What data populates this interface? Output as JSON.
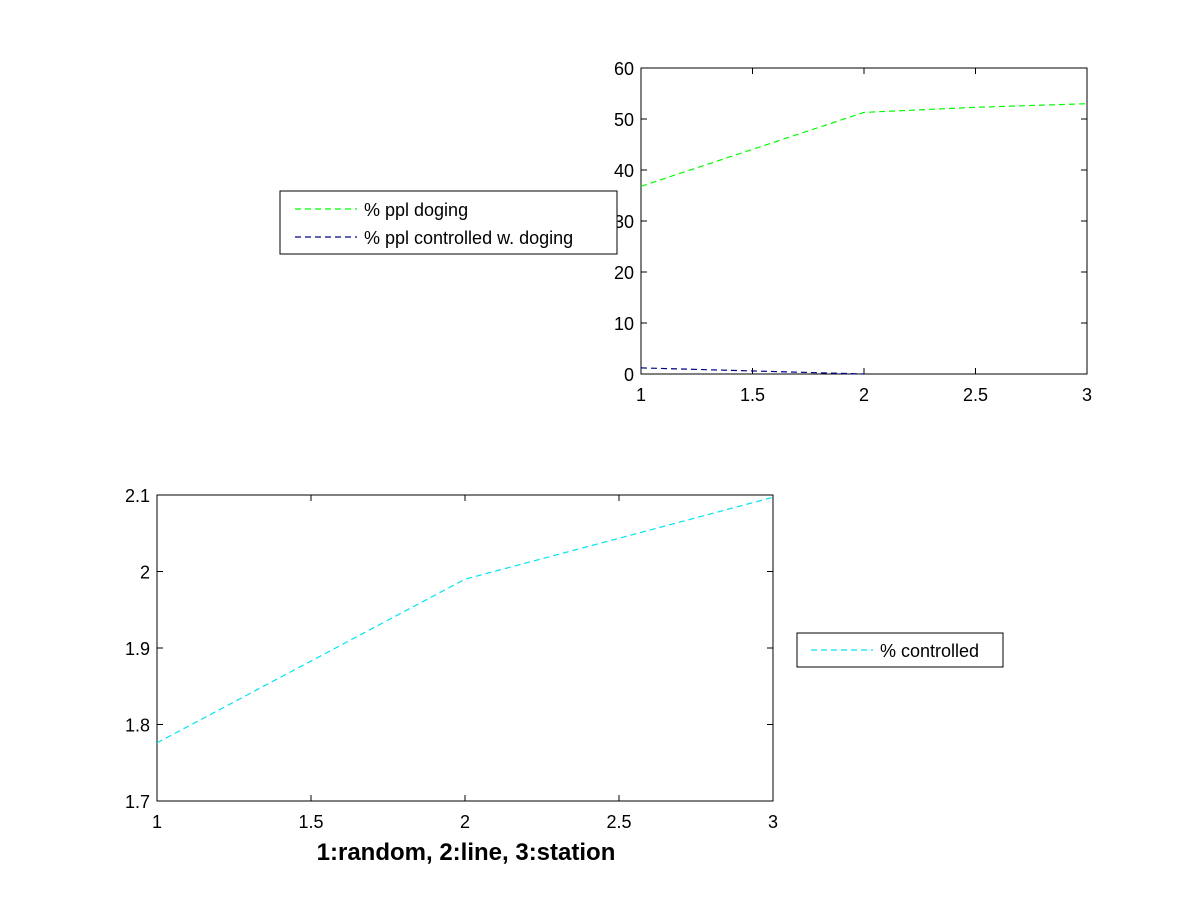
{
  "chart_data": [
    {
      "type": "line",
      "x": [
        1,
        2,
        3
      ],
      "xlim": [
        1,
        3
      ],
      "ylim": [
        0,
        60
      ],
      "xticks": [
        1,
        1.5,
        2,
        2.5,
        3
      ],
      "xtick_labels": [
        "1",
        "1.5",
        "2",
        "2.5",
        "3"
      ],
      "yticks": [
        0,
        10,
        20,
        30,
        40,
        50,
        60
      ],
      "ytick_labels": [
        "0",
        "10",
        "20",
        "30",
        "40",
        "50",
        "60"
      ],
      "grid": false,
      "legend_placement": "left-outside",
      "xlabel": "",
      "ylabel": "",
      "title": "",
      "series": [
        {
          "name": "% ppl doging",
          "x": [
            1,
            2,
            2.5,
            3
          ],
          "values": [
            36.8,
            51.3,
            52.3,
            53.0
          ],
          "color": "#00ff00",
          "style": "dashed"
        },
        {
          "name": "% ppl controlled w. doging",
          "x": [
            1,
            2
          ],
          "values": [
            1.2,
            0.0
          ],
          "color": "#00008b",
          "style": "dashed"
        }
      ]
    },
    {
      "type": "line",
      "x": [
        1,
        2,
        3
      ],
      "xlim": [
        1,
        3
      ],
      "ylim": [
        1.7,
        2.1
      ],
      "xticks": [
        1,
        1.5,
        2,
        2.5,
        3
      ],
      "xtick_labels": [
        "1",
        "1.5",
        "2",
        "2.5",
        "3"
      ],
      "yticks": [
        1.7,
        1.8,
        1.9,
        2.0,
        2.1
      ],
      "ytick_labels": [
        "1.7",
        "1.8",
        "1.9",
        "2",
        "2.1"
      ],
      "grid": false,
      "legend_placement": "right-outside",
      "xlabel": "1:random, 2:line, 3:station",
      "ylabel": "",
      "title": "",
      "series": [
        {
          "name": "% controlled",
          "x": [
            1,
            2,
            3
          ],
          "values": [
            1.776,
            1.99,
            2.097
          ],
          "color": "#00e5ee",
          "style": "dashed"
        }
      ]
    }
  ]
}
